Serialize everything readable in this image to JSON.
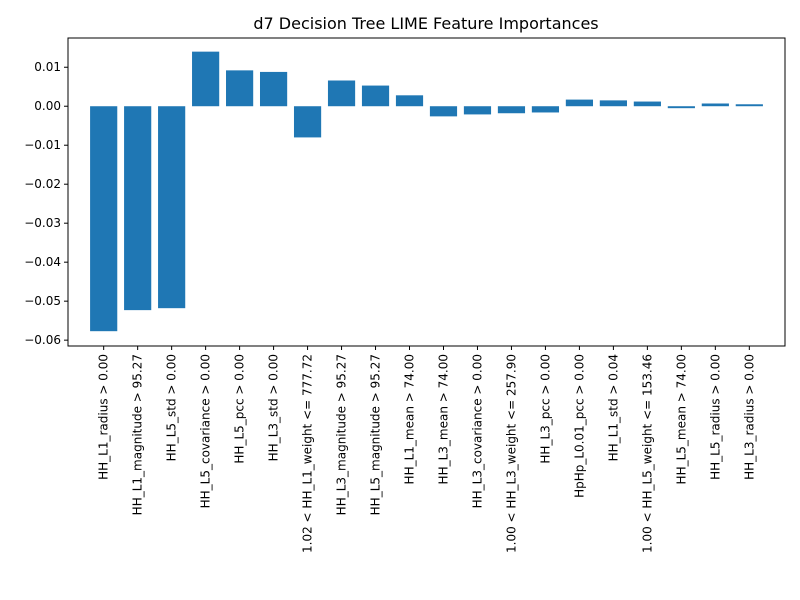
{
  "chart_data": {
    "type": "bar",
    "title": "d7 Decision Tree LIME Feature Importances",
    "xlabel": "",
    "ylabel": "",
    "ylim": [
      -0.0615,
      0.0175
    ],
    "yticks": [
      0.01,
      0.0,
      -0.01,
      -0.02,
      -0.03,
      -0.04,
      -0.05,
      -0.06
    ],
    "ytick_labels": [
      "0.01",
      "0.00",
      "−0.01",
      "−0.02",
      "−0.03",
      "−0.04",
      "−0.05",
      "−0.06"
    ],
    "grid": false,
    "bar_color": "#1f77b4",
    "categories": [
      "HH_L1_radius > 0.00",
      "HH_L1_magnitude > 95.27",
      "HH_L5_std > 0.00",
      "HH_L5_covariance > 0.00",
      "HH_L5_pcc > 0.00",
      "HH_L3_std > 0.00",
      "1.02 < HH_L1_weight <= 777.72",
      "HH_L3_magnitude > 95.27",
      "HH_L5_magnitude > 95.27",
      "HH_L1_mean > 74.00",
      "HH_L3_mean > 74.00",
      "HH_L3_covariance > 0.00",
      "1.00 < HH_L3_weight <= 257.90",
      "HH_L3_pcc > 0.00",
      "HpHp_L0.01_pcc > 0.00",
      "HH_L1_std > 0.04",
      "1.00 < HH_L5_weight <= 153.46",
      "HH_L5_mean > 74.00",
      "HH_L5_radius > 0.00",
      "HH_L3_radius > 0.00"
    ],
    "values": [
      -0.0577,
      -0.0523,
      -0.0518,
      0.014,
      0.0092,
      0.0088,
      -0.008,
      0.0066,
      0.0053,
      0.0028,
      -0.0026,
      -0.0021,
      -0.0018,
      -0.0016,
      0.0017,
      0.0015,
      0.0012,
      -0.0005,
      0.0007,
      0.0005
    ]
  }
}
